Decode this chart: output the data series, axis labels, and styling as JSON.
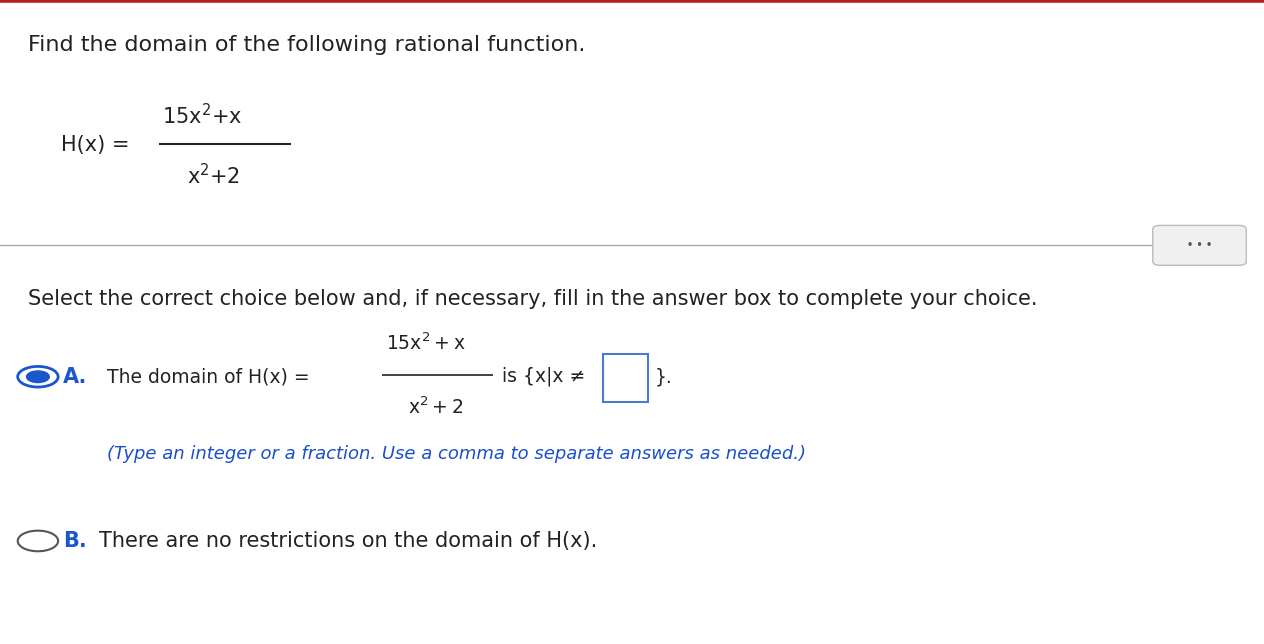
{
  "bg_color": "#ffffff",
  "top_border_color": "#b22222",
  "title_text": "Find the domain of the following rational function.",
  "title_fontsize": 16,
  "select_text": "Select the correct choice below and, if necessary, fill in the answer box to complete your choice.",
  "select_fontsize": 15,
  "option_a_label": "A.",
  "option_a_color": "#1a56cc",
  "option_a_fontsize": 15,
  "hint_text": "(Type an integer or a fraction. Use a comma to separate answers as needed.)",
  "hint_color": "#1a4fcc",
  "hint_fontsize": 13,
  "option_b_label": "B.",
  "option_b_text": "There are no restrictions on the domain of H(x).",
  "option_b_fontsize": 15,
  "option_b_color": "#1a56cc",
  "text_color": "#222222"
}
